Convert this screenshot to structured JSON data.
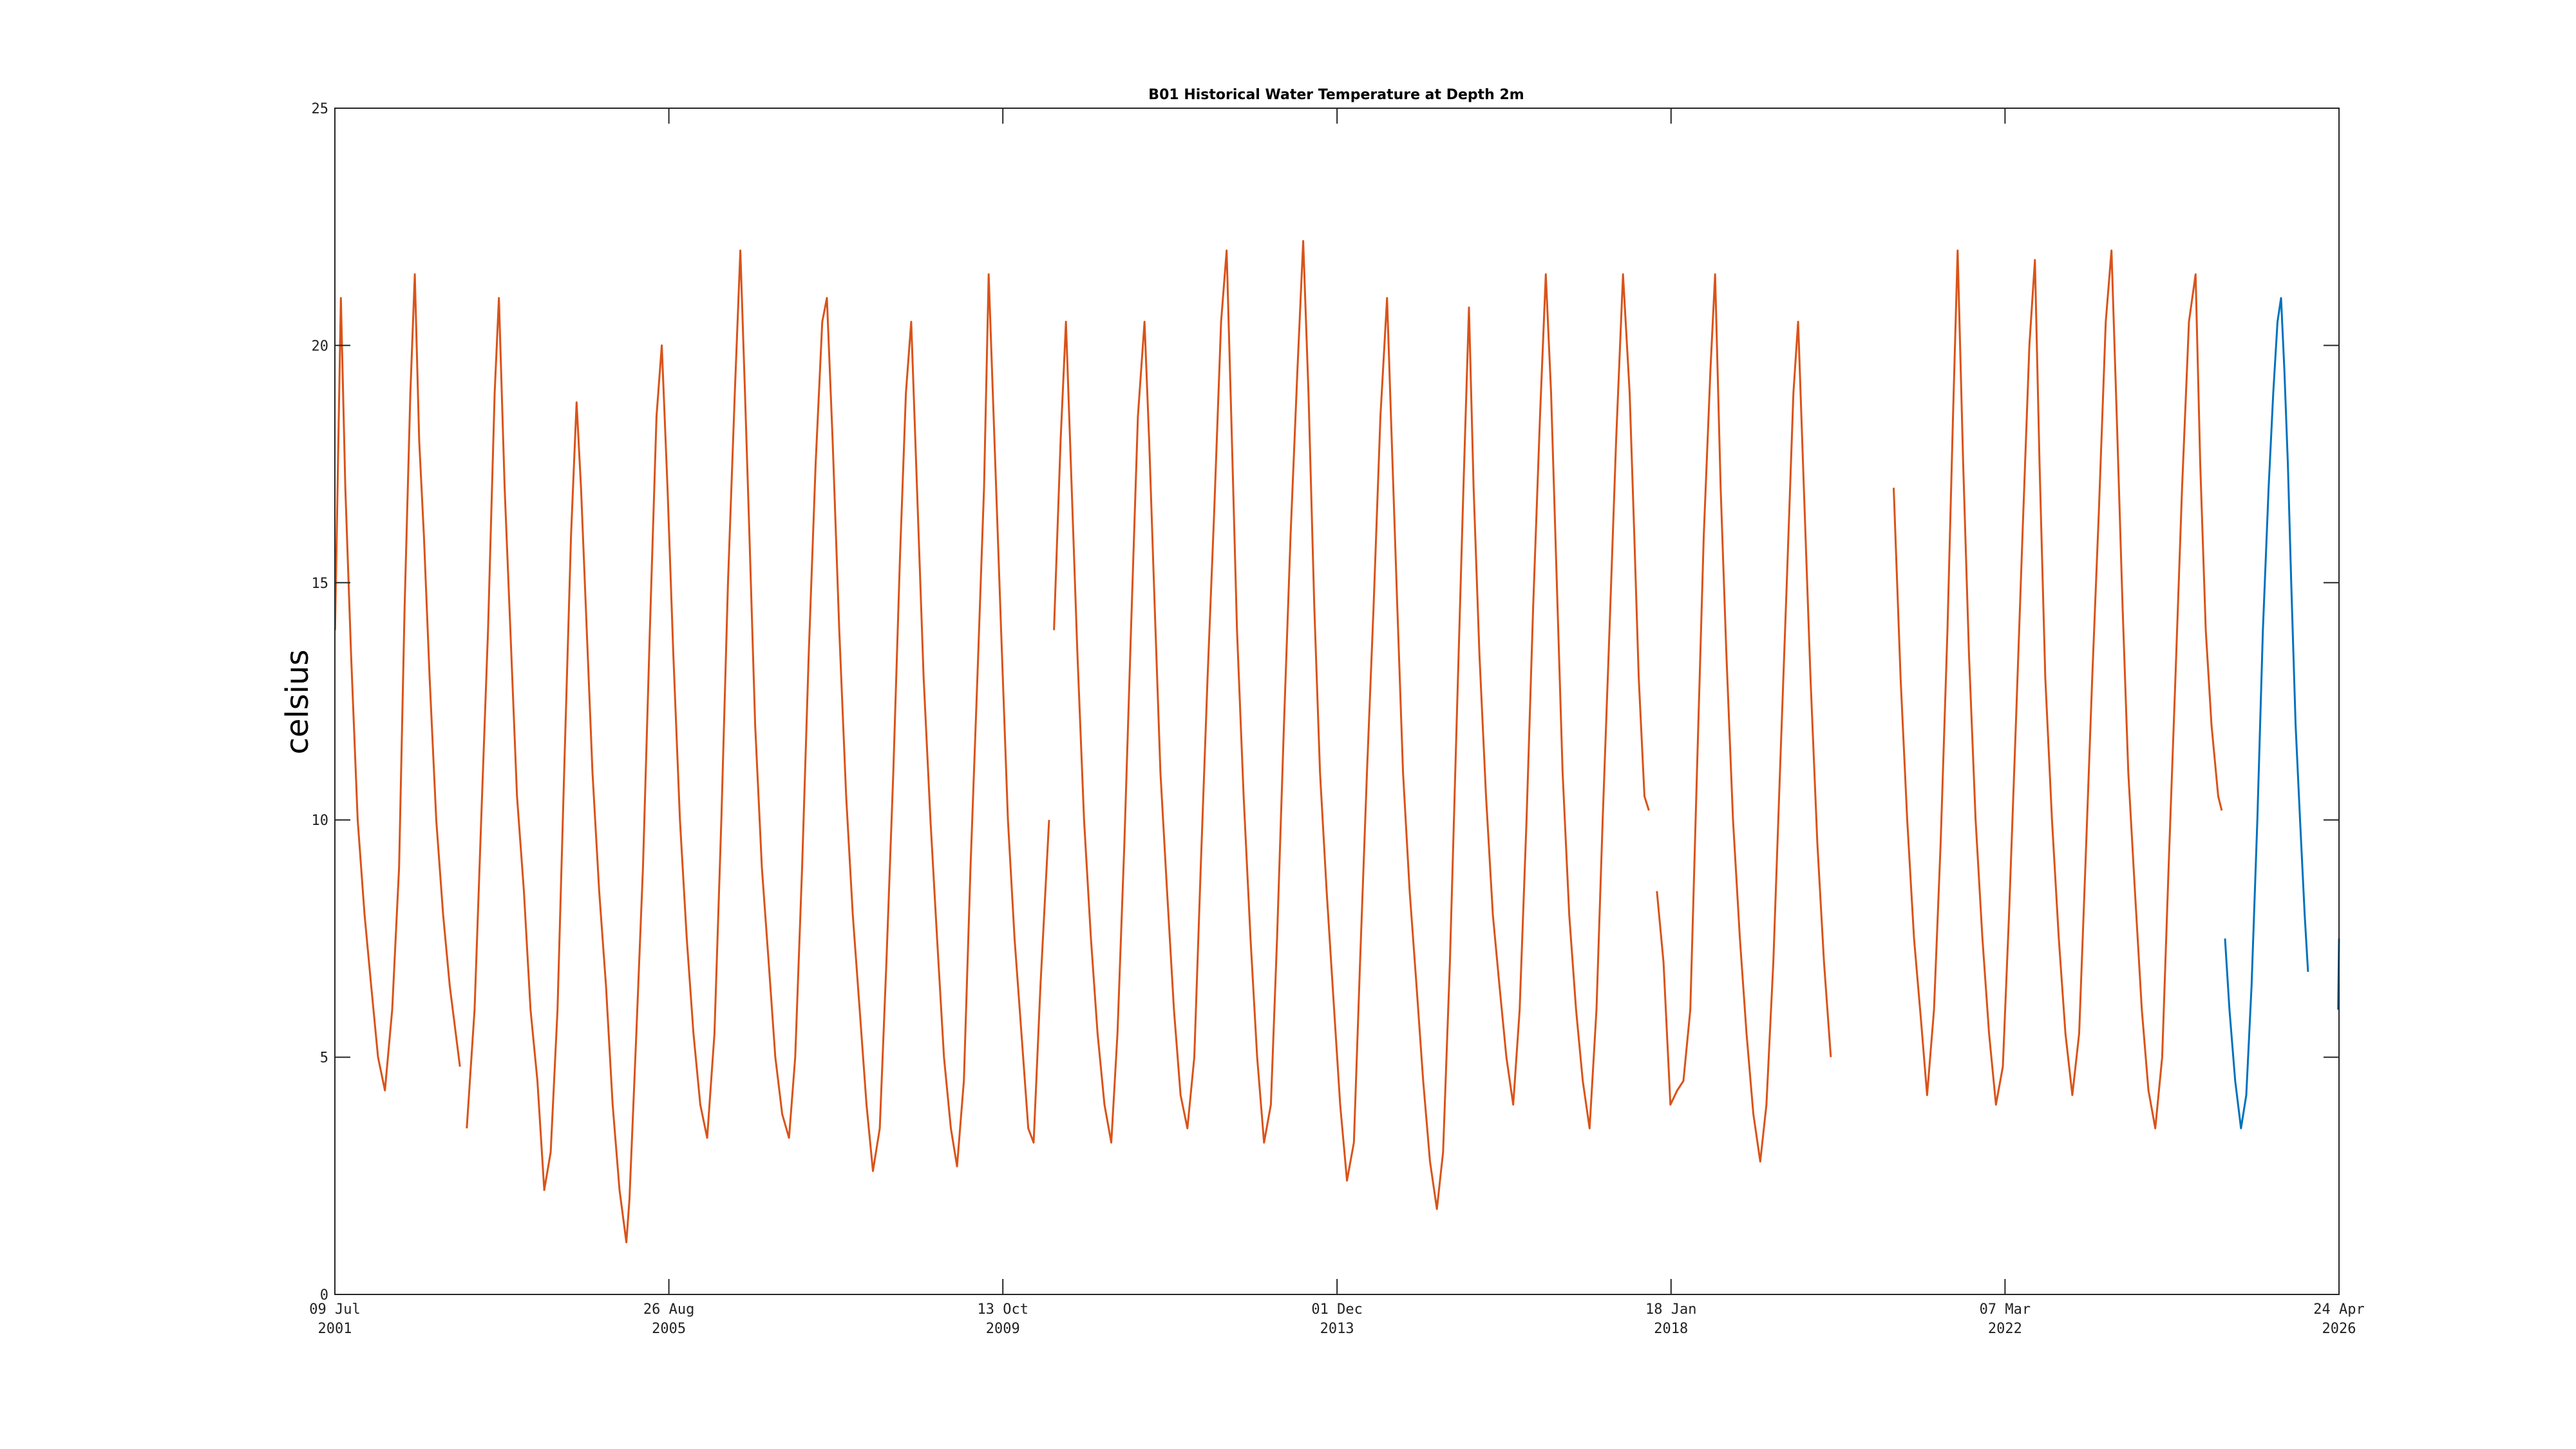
{
  "chart_data": {
    "type": "line",
    "title": "B01 Historical Water Temperature at Depth 2m",
    "xlabel": "",
    "ylabel": "celsius",
    "ylim": [
      0,
      25
    ],
    "xlim": [
      "2001-07-09",
      "2026-04-24"
    ],
    "y_ticks": [
      "0",
      "5",
      "10",
      "15",
      "20",
      "25"
    ],
    "x_ticks": [
      {
        "date": "2001-07-09",
        "line1": "09 Jul",
        "line2": "2001"
      },
      {
        "date": "2005-08-26",
        "line1": "26 Aug",
        "line2": "2005"
      },
      {
        "date": "2009-10-13",
        "line1": "13 Oct",
        "line2": "2009"
      },
      {
        "date": "2013-12-01",
        "line1": "01 Dec",
        "line2": "2013"
      },
      {
        "date": "2018-01-18",
        "line1": "18 Jan",
        "line2": "2018"
      },
      {
        "date": "2022-03-07",
        "line1": "07 Mar",
        "line2": "2022"
      },
      {
        "date": "2026-04-24",
        "line1": "24 Apr",
        "line2": "2026"
      }
    ],
    "grid": false,
    "series": [
      {
        "color": "#d95319",
        "segments": [
          {
            "x": [
              "2001-07-10",
              "2001-08-05",
              "2001-08-25",
              "2001-09-20",
              "2001-10-20",
              "2001-11-20",
              "2001-12-20",
              "2002-01-20",
              "2002-02-20",
              "2002-03-25",
              "2002-04-25",
              "2002-05-20",
              "2002-06-15",
              "2002-07-05",
              "2002-07-25",
              "2002-08-15",
              "2002-09-10",
              "2002-10-10",
              "2002-11-10",
              "2002-12-10",
              "2003-01-25"
            ],
            "y": [
              14,
              21,
              17,
              13.5,
              10,
              8,
              6.5,
              5,
              4.3,
              6,
              9,
              14.5,
              19,
              21.5,
              18,
              16,
              13,
              10,
              8,
              6.5,
              4.8
            ]
          },
          {
            "x": [
              "2003-02-25",
              "2003-04-01",
              "2003-05-01",
              "2003-06-01",
              "2003-07-01",
              "2003-07-20",
              "2003-08-15",
              "2003-09-10",
              "2003-10-10",
              "2003-11-10",
              "2003-12-10",
              "2004-01-10",
              "2004-02-10",
              "2004-03-10",
              "2004-04-10",
              "2004-05-10",
              "2004-06-10",
              "2004-07-05",
              "2004-07-25",
              "2004-08-20",
              "2004-09-15",
              "2004-10-15",
              "2004-11-15",
              "2004-12-15",
              "2005-01-15",
              "2005-02-15",
              "2005-03-01",
              "2005-04-01",
              "2005-05-01",
              "2005-06-01",
              "2005-07-01",
              "2005-07-25",
              "2005-08-20",
              "2005-09-15",
              "2005-10-15",
              "2005-11-15",
              "2005-12-15",
              "2006-01-15",
              "2006-02-15",
              "2006-03-20",
              "2006-04-20",
              "2006-05-20",
              "2006-06-20",
              "2006-07-15",
              "2006-08-05",
              "2006-08-25",
              "2006-09-20",
              "2006-10-20",
              "2006-11-20",
              "2006-12-20",
              "2007-01-20",
              "2007-02-20",
              "2007-03-20",
              "2007-04-20",
              "2007-05-20",
              "2007-06-20",
              "2007-07-20",
              "2007-08-10",
              "2007-09-05",
              "2007-10-05",
              "2007-11-05",
              "2007-12-05",
              "2008-01-05",
              "2008-02-05",
              "2008-03-05",
              "2008-04-05",
              "2008-05-05",
              "2008-06-05",
              "2008-07-05",
              "2008-08-01",
              "2008-08-25",
              "2008-09-20",
              "2008-10-20",
              "2008-11-20",
              "2008-12-20",
              "2009-01-20",
              "2009-02-20",
              "2009-03-20",
              "2009-04-20",
              "2009-05-20",
              "2009-06-20",
              "2009-07-20",
              "2009-08-10",
              "2009-09-05",
              "2009-10-05",
              "2009-11-05",
              "2009-12-05",
              "2010-01-05",
              "2010-02-05",
              "2010-03-01",
              "2010-04-01",
              "2010-05-10"
            ],
            "y": [
              3.5,
              6,
              10,
              14,
              19,
              21,
              17,
              14,
              10.5,
              8.5,
              6,
              4.5,
              2.2,
              3,
              6,
              11,
              16,
              18.8,
              17,
              14,
              11,
              8.5,
              6.5,
              4,
              2.2,
              1.1,
              2,
              5.5,
              9,
              14,
              18.5,
              20,
              17,
              13.5,
              10,
              7.5,
              5.5,
              4,
              3.3,
              5.5,
              10,
              15,
              19,
              22,
              19,
              16,
              12,
              9,
              7,
              5,
              3.8,
              3.3,
              5,
              9,
              13.5,
              17.5,
              20.5,
              21,
              18,
              14,
              10.5,
              8,
              6,
              4,
              2.6,
              3.5,
              7,
              11,
              15.5,
              19,
              20.5,
              17,
              13,
              10,
              7.5,
              5,
              3.5,
              2.7,
              4.5,
              9,
              13,
              17,
              21.5,
              18,
              14,
              10,
              7.5,
              5.5,
              3.5,
              3.2,
              6.5,
              10
            ]
          },
          {
            "x": [
              "2010-06-01",
              "2010-07-01",
              "2010-07-25",
              "2010-08-20",
              "2010-09-15",
              "2010-10-15",
              "2010-11-15",
              "2010-12-15",
              "2011-01-15",
              "2011-02-15",
              "2011-03-15",
              "2011-04-15",
              "2011-05-15",
              "2011-06-15",
              "2011-07-15",
              "2011-08-05",
              "2011-08-30",
              "2011-09-25",
              "2011-10-25",
              "2011-11-25",
              "2011-12-25",
              "2012-01-25",
              "2012-02-25",
              "2012-03-25",
              "2012-04-25",
              "2012-05-25",
              "2012-06-25",
              "2012-07-20",
              "2012-08-10",
              "2012-09-05",
              "2012-10-05",
              "2012-11-05",
              "2012-12-05",
              "2013-01-05",
              "2013-02-05",
              "2013-03-05",
              "2013-04-05",
              "2013-05-05",
              "2013-06-05",
              "2013-07-01",
              "2013-07-25",
              "2013-08-20",
              "2013-09-15",
              "2013-10-15",
              "2013-11-15",
              "2013-12-15",
              "2014-01-15",
              "2014-02-15",
              "2014-03-15",
              "2014-04-15",
              "2014-05-15",
              "2014-06-15",
              "2014-07-15",
              "2014-08-05",
              "2014-08-30",
              "2014-09-25",
              "2014-10-25",
              "2014-11-25",
              "2014-12-25",
              "2015-01-25",
              "2015-02-25",
              "2015-03-25",
              "2015-04-25",
              "2015-05-25",
              "2015-06-25",
              "2015-07-20",
              "2015-08-10",
              "2015-09-05",
              "2015-10-05",
              "2015-11-05",
              "2015-12-05",
              "2016-01-05",
              "2016-02-05",
              "2016-03-05",
              "2016-04-05",
              "2016-05-05",
              "2016-06-05",
              "2016-07-01",
              "2016-07-25",
              "2016-08-20",
              "2016-09-15",
              "2016-10-15",
              "2016-11-15",
              "2016-12-15",
              "2017-01-15",
              "2017-02-15",
              "2017-03-15",
              "2017-04-15",
              "2017-05-15",
              "2017-06-15",
              "2017-07-15",
              "2017-08-05",
              "2017-08-25",
              "2017-09-20",
              "2017-10-10"
            ],
            "y": [
              14,
              18,
              20.5,
              17,
              13.5,
              10,
              7.5,
              5.5,
              4,
              3.2,
              5.5,
              9.5,
              14,
              18.5,
              20.5,
              18,
              14.5,
              11,
              8.5,
              6,
              4.2,
              3.5,
              5,
              9,
              13,
              16.5,
              20.5,
              22,
              18.5,
              14,
              10.5,
              7.5,
              5,
              3.2,
              4,
              7.5,
              12,
              16,
              19.5,
              22.2,
              19,
              14.5,
              11,
              8.5,
              6.2,
              4,
              2.4,
              3.2,
              7,
              11,
              14.5,
              18.5,
              21,
              18,
              14.5,
              11,
              8.5,
              6.5,
              4.5,
              2.8,
              1.8,
              3,
              7,
              12,
              17,
              20.8,
              17,
              13.5,
              10.5,
              8,
              6.5,
              5,
              4,
              6,
              10,
              14.5,
              18.5,
              21.5,
              19,
              15,
              11,
              8,
              6,
              4.5,
              3.5,
              6,
              10,
              14,
              18,
              21.5,
              19,
              16,
              13,
              10.5,
              10.2
            ]
          },
          {
            "x": [
              "2017-11-15",
              "2017-12-15",
              "2018-01-15",
              "2018-02-15",
              "2018-03-15",
              "2018-04-15",
              "2018-05-15",
              "2018-06-15",
              "2018-07-15",
              "2018-08-05",
              "2018-08-30",
              "2018-09-25",
              "2018-10-25",
              "2018-11-25",
              "2018-12-25",
              "2019-01-25",
              "2019-02-25",
              "2019-03-25",
              "2019-04-25",
              "2019-05-25",
              "2019-06-25",
              "2019-07-25",
              "2019-08-15",
              "2019-09-10",
              "2019-10-10",
              "2019-11-10",
              "2019-12-10",
              "2020-01-10"
            ],
            "y": [
              8.5,
              7,
              4,
              4.3,
              4.5,
              6,
              11,
              16,
              19.5,
              21.5,
              17,
              13.5,
              10,
              7.5,
              5.5,
              3.8,
              2.8,
              4,
              7,
              11,
              15,
              19,
              20.5,
              17,
              13,
              9.5,
              7,
              5
            ]
          },
          {
            "x": [
              "2020-10-20",
              "2020-11-20",
              "2020-12-20",
              "2021-01-20",
              "2021-02-20",
              "2021-03-20",
              "2021-04-20",
              "2021-05-20",
              "2021-06-20",
              "2021-07-15",
              "2021-08-05",
              "2021-08-30",
              "2021-09-25",
              "2021-10-25",
              "2021-11-25",
              "2021-12-25",
              "2022-01-25",
              "2022-02-25",
              "2022-03-25",
              "2022-04-25",
              "2022-05-25",
              "2022-06-25",
              "2022-07-20",
              "2022-08-10",
              "2022-09-05",
              "2022-10-05",
              "2022-11-05",
              "2022-12-05",
              "2023-01-05",
              "2023-02-05",
              "2023-03-05",
              "2023-04-05",
              "2023-05-05",
              "2023-06-05",
              "2023-07-01",
              "2023-07-25",
              "2023-08-20",
              "2023-09-15",
              "2023-10-15",
              "2023-11-15",
              "2023-12-15",
              "2024-01-15",
              "2024-02-15",
              "2024-03-15",
              "2024-04-15",
              "2024-05-15",
              "2024-06-15",
              "2024-07-15",
              "2024-08-05",
              "2024-08-30",
              "2024-09-25",
              "2024-10-25",
              "2024-11-10"
            ],
            "y": [
              17,
              13,
              10,
              7.5,
              5.8,
              4.2,
              6,
              9.5,
              14,
              18.5,
              22,
              17.5,
              13.5,
              10,
              7.5,
              5.5,
              4,
              4.8,
              8,
              12,
              16,
              20,
              21.8,
              17.5,
              13,
              10,
              7.5,
              5.5,
              4.2,
              5.5,
              9,
              13,
              16.5,
              20.5,
              22,
              18.5,
              14.5,
              11,
              8.5,
              6,
              4.3,
              3.5,
              5,
              9,
              13,
              17,
              20.5,
              21.5,
              17.5,
              14,
              12,
              10.5,
              10.2
            ]
          }
        ]
      },
      {
        "color": "#0072bd",
        "segments": [
          {
            "x": [
              "2024-11-25",
              "2024-12-15",
              "2025-01-10",
              "2025-02-05",
              "2025-03-01",
              "2025-03-25",
              "2025-04-20",
              "2025-05-15",
              "2025-06-10",
              "2025-07-01",
              "2025-07-20",
              "2025-08-05",
              "2025-08-20",
              "2025-09-05",
              "2025-09-20",
              "2025-10-10",
              "2025-10-30",
              "2025-11-20",
              "2025-12-05"
            ],
            "y": [
              7.5,
              6,
              4.5,
              3.5,
              4.2,
              6.5,
              10,
              14,
              17,
              19,
              20.5,
              21,
              19.5,
              17.5,
              15,
              12,
              10,
              8,
              6.8
            ]
          },
          {
            "x": [
              "2026-04-20",
              "2026-04-24"
            ],
            "y": [
              6,
              7.5
            ]
          }
        ]
      }
    ]
  }
}
